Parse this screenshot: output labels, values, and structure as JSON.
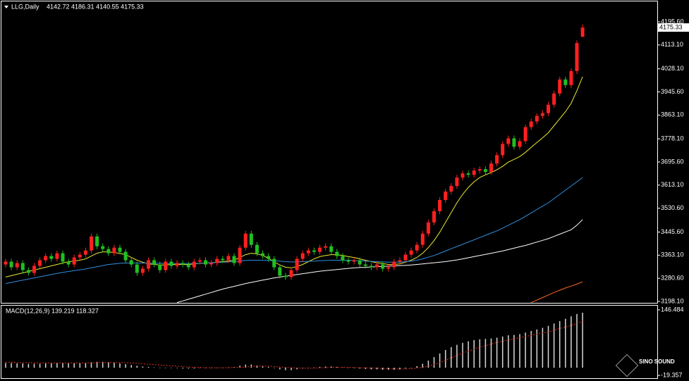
{
  "chart_data": [
    {
      "type": "candlestick",
      "title": "LLG,Daily",
      "subtitle": "4142.72 4186.31 4140.55 4175.33",
      "up_color": "#ff2020",
      "down_color": "#20c020",
      "open": [
        3330,
        3340,
        3320,
        3335,
        3310,
        3300,
        3325,
        3345,
        3360,
        3350,
        3370,
        3340,
        3330,
        3355,
        3365,
        3380,
        3430,
        3395,
        3385,
        3370,
        3390,
        3375,
        3345,
        3330,
        3300,
        3315,
        3345,
        3330,
        3310,
        3340,
        3325,
        3335,
        3330,
        3320,
        3340,
        3345,
        3330,
        3335,
        3350,
        3345,
        3360,
        3335,
        3390,
        3440,
        3400,
        3370,
        3360,
        3350,
        3320,
        3290,
        3285,
        3310,
        3350,
        3370,
        3380,
        3375,
        3390,
        3395,
        3375,
        3360,
        3345,
        3340,
        3345,
        3330,
        3325,
        3320,
        3330,
        3315,
        3320,
        3340,
        3345,
        3365,
        3380,
        3400,
        3440,
        3480,
        3520,
        3560,
        3590,
        3610,
        3640,
        3655,
        3650,
        3665,
        3670,
        3660,
        3690,
        3720,
        3760,
        3780,
        3750,
        3770,
        3820,
        3840,
        3860,
        3870,
        3900,
        3940,
        3990,
        3970,
        4020,
        4142.72
      ],
      "high": [
        3350,
        3350,
        3345,
        3345,
        3320,
        3335,
        3355,
        3370,
        3370,
        3380,
        3380,
        3350,
        3365,
        3375,
        3390,
        3440,
        3440,
        3405,
        3395,
        3400,
        3400,
        3385,
        3355,
        3340,
        3325,
        3355,
        3355,
        3340,
        3350,
        3350,
        3345,
        3345,
        3340,
        3350,
        3355,
        3355,
        3345,
        3360,
        3360,
        3370,
        3370,
        3400,
        3450,
        3450,
        3410,
        3380,
        3370,
        3360,
        3330,
        3300,
        3320,
        3360,
        3380,
        3390,
        3390,
        3400,
        3405,
        3405,
        3385,
        3370,
        3355,
        3355,
        3355,
        3340,
        3335,
        3340,
        3340,
        3330,
        3350,
        3355,
        3375,
        3390,
        3410,
        3450,
        3490,
        3530,
        3570,
        3600,
        3620,
        3650,
        3665,
        3665,
        3675,
        3680,
        3680,
        3700,
        3730,
        3770,
        3790,
        3790,
        3780,
        3830,
        3850,
        3870,
        3880,
        3910,
        3950,
        4000,
        4000,
        4030,
        4130,
        4186.31
      ],
      "low": [
        3320,
        3310,
        3310,
        3300,
        3290,
        3290,
        3315,
        3335,
        3340,
        3340,
        3330,
        3320,
        3320,
        3345,
        3355,
        3370,
        3385,
        3375,
        3360,
        3360,
        3365,
        3335,
        3320,
        3290,
        3290,
        3305,
        3320,
        3300,
        3300,
        3315,
        3315,
        3320,
        3310,
        3310,
        3330,
        3320,
        3320,
        3325,
        3335,
        3335,
        3325,
        3325,
        3380,
        3390,
        3360,
        3350,
        3340,
        3310,
        3280,
        3275,
        3275,
        3300,
        3340,
        3360,
        3365,
        3365,
        3380,
        3365,
        3350,
        3335,
        3330,
        3330,
        3320,
        3315,
        3310,
        3310,
        3305,
        3305,
        3310,
        3330,
        3335,
        3355,
        3370,
        3390,
        3430,
        3470,
        3510,
        3550,
        3580,
        3600,
        3630,
        3640,
        3640,
        3655,
        3650,
        3650,
        3680,
        3710,
        3750,
        3740,
        3740,
        3760,
        3810,
        3830,
        3850,
        3860,
        3890,
        3930,
        3960,
        3960,
        4010,
        4140.55
      ],
      "close": [
        3340,
        3320,
        3335,
        3310,
        3300,
        3325,
        3345,
        3360,
        3350,
        3370,
        3340,
        3330,
        3355,
        3365,
        3380,
        3430,
        3395,
        3385,
        3370,
        3390,
        3375,
        3345,
        3330,
        3300,
        3315,
        3345,
        3330,
        3310,
        3340,
        3325,
        3335,
        3330,
        3320,
        3340,
        3345,
        3330,
        3335,
        3350,
        3345,
        3360,
        3335,
        3390,
        3440,
        3400,
        3370,
        3360,
        3350,
        3320,
        3290,
        3285,
        3310,
        3350,
        3370,
        3380,
        3375,
        3390,
        3395,
        3375,
        3360,
        3345,
        3340,
        3345,
        3330,
        3325,
        3320,
        3330,
        3315,
        3320,
        3340,
        3345,
        3365,
        3380,
        3400,
        3440,
        3480,
        3520,
        3560,
        3590,
        3610,
        3640,
        3655,
        3650,
        3665,
        3670,
        3660,
        3690,
        3720,
        3760,
        3780,
        3750,
        3770,
        3820,
        3840,
        3860,
        3870,
        3900,
        3940,
        3990,
        3970,
        4020,
        4120,
        4175.33
      ],
      "series": [
        {
          "color": "#e8e830",
          "values": [
            3285,
            3290,
            3295,
            3300,
            3305,
            3310,
            3315,
            3320,
            3325,
            3330,
            3335,
            3340,
            3342,
            3345,
            3350,
            3360,
            3370,
            3375,
            3375,
            3372,
            3370,
            3365,
            3355,
            3345,
            3338,
            3332,
            3330,
            3328,
            3328,
            3330,
            3330,
            3330,
            3330,
            3332,
            3334,
            3335,
            3336,
            3338,
            3340,
            3342,
            3345,
            3355,
            3365,
            3370,
            3368,
            3362,
            3352,
            3340,
            3328,
            3320,
            3318,
            3322,
            3330,
            3340,
            3350,
            3358,
            3362,
            3365,
            3365,
            3362,
            3358,
            3355,
            3350,
            3345,
            3340,
            3336,
            3333,
            3330,
            3330,
            3332,
            3338,
            3345,
            3355,
            3370,
            3390,
            3415,
            3445,
            3480,
            3515,
            3550,
            3580,
            3605,
            3625,
            3640,
            3650,
            3658,
            3668,
            3680,
            3695,
            3705,
            3715,
            3730,
            3748,
            3765,
            3782,
            3800,
            3825,
            3850,
            3875,
            3905,
            3950,
            4000
          ]
        },
        {
          "color": "#2f8fe0",
          "values": [
            3262,
            3266,
            3270,
            3274,
            3278,
            3282,
            3286,
            3290,
            3294,
            3298,
            3302,
            3305,
            3308,
            3311,
            3314,
            3318,
            3322,
            3326,
            3330,
            3332,
            3334,
            3335,
            3335,
            3335,
            3335,
            3335,
            3334,
            3334,
            3333,
            3333,
            3333,
            3333,
            3333,
            3333,
            3334,
            3335,
            3336,
            3337,
            3338,
            3339,
            3340,
            3342,
            3344,
            3345,
            3345,
            3345,
            3344,
            3343,
            3342,
            3340,
            3339,
            3339,
            3340,
            3341,
            3342,
            3343,
            3344,
            3345,
            3345,
            3345,
            3345,
            3344,
            3343,
            3342,
            3341,
            3340,
            3339,
            3338,
            3338,
            3338,
            3340,
            3342,
            3345,
            3350,
            3356,
            3362,
            3370,
            3378,
            3386,
            3394,
            3402,
            3410,
            3418,
            3426,
            3434,
            3442,
            3450,
            3460,
            3470,
            3480,
            3490,
            3502,
            3514,
            3526,
            3538,
            3550,
            3565,
            3580,
            3595,
            3610,
            3625,
            3640
          ]
        },
        {
          "color": "#ffffff",
          "values": [
            null,
            null,
            null,
            null,
            null,
            null,
            null,
            null,
            null,
            null,
            null,
            null,
            null,
            null,
            null,
            null,
            null,
            null,
            null,
            null,
            null,
            null,
            null,
            null,
            null,
            null,
            null,
            null,
            null,
            null,
            3194,
            3200,
            3206,
            3212,
            3218,
            3224,
            3230,
            3236,
            3242,
            3247,
            3252,
            3257,
            3262,
            3266,
            3270,
            3274,
            3278,
            3282,
            3285,
            3288,
            3291,
            3294,
            3297,
            3300,
            3303,
            3306,
            3308,
            3310,
            3312,
            3314,
            3316,
            3318,
            3319,
            3320,
            3321,
            3322,
            3323,
            3324,
            3325,
            3326,
            3327,
            3328,
            3330,
            3332,
            3334,
            3336,
            3338,
            3340,
            3343,
            3346,
            3350,
            3354,
            3358,
            3362,
            3366,
            3370,
            3374,
            3378,
            3383,
            3388,
            3393,
            3398,
            3404,
            3410,
            3416,
            3422,
            3430,
            3438,
            3446,
            3454,
            3470,
            3490
          ]
        },
        {
          "color": "#ff6a20",
          "values": [
            null,
            null,
            null,
            null,
            null,
            null,
            null,
            null,
            null,
            null,
            null,
            null,
            null,
            null,
            null,
            null,
            null,
            null,
            null,
            null,
            null,
            null,
            null,
            null,
            null,
            null,
            null,
            null,
            null,
            null,
            null,
            null,
            null,
            null,
            null,
            null,
            null,
            null,
            null,
            null,
            null,
            null,
            null,
            null,
            null,
            null,
            null,
            null,
            null,
            null,
            null,
            null,
            null,
            null,
            null,
            null,
            null,
            null,
            null,
            null,
            null,
            null,
            null,
            null,
            null,
            null,
            null,
            null,
            null,
            null,
            null,
            null,
            null,
            null,
            null,
            null,
            null,
            null,
            null,
            null,
            null,
            null,
            null,
            null,
            null,
            null,
            null,
            null,
            null,
            null,
            null,
            null,
            3194,
            3203,
            3212,
            3221,
            3230,
            3238,
            3246,
            3253,
            3260,
            3268
          ]
        }
      ],
      "last_price": 4175.33,
      "ylim": [
        3193.1,
        4268.5
      ],
      "yticks": [
        {
          "value": 4195.6,
          "label": "4195.60"
        },
        {
          "value": 4113.1,
          "label": "4113.10"
        },
        {
          "value": 4028.1,
          "label": "4028.10"
        },
        {
          "value": 3945.6,
          "label": "3945.60"
        },
        {
          "value": 3863.1,
          "label": "3863.10"
        },
        {
          "value": 3778.1,
          "label": "3778.10"
        },
        {
          "value": 3695.6,
          "label": "3695.60"
        },
        {
          "value": 3613.1,
          "label": "3613.10"
        },
        {
          "value": 3530.6,
          "label": "3530.60"
        },
        {
          "value": 3445.6,
          "label": "3445.60"
        },
        {
          "value": 3363.1,
          "label": "3363.10"
        },
        {
          "value": 3280.6,
          "label": "3280.60"
        },
        {
          "value": 3198.1,
          "label": "3198.10"
        }
      ]
    },
    {
      "type": "macd",
      "title": "MACD(12,26,9) 139.219 118.327",
      "series": [
        {
          "type": "bar",
          "color": "#d8d8d8",
          "values": [
            12,
            12,
            11,
            11,
            10,
            10,
            10,
            11,
            11,
            12,
            12,
            11,
            11,
            11,
            12,
            14,
            15,
            15,
            14,
            13,
            11,
            9,
            7,
            5,
            3,
            2,
            1,
            0,
            -1,
            -1,
            -1,
            -2,
            -2,
            -2,
            -1,
            -1,
            -1,
            0,
            0,
            1,
            2,
            5,
            8,
            8,
            6,
            4,
            2,
            -1,
            -4,
            -6,
            -6,
            -4,
            -2,
            0,
            1,
            2,
            3,
            3,
            2,
            1,
            0,
            -1,
            -2,
            -3,
            -4,
            -4,
            -5,
            -5,
            -5,
            -4,
            -2,
            0,
            4,
            10,
            18,
            27,
            36,
            45,
            52,
            58,
            63,
            67,
            70,
            72,
            73,
            74,
            76,
            79,
            82,
            83,
            85,
            89,
            93,
            97,
            101,
            106,
            112,
            118,
            124,
            130,
            136,
            139.219
          ]
        },
        {
          "type": "line",
          "color": "#e03020",
          "values": [
            14,
            14,
            13,
            13,
            13,
            12,
            12,
            12,
            12,
            12,
            12,
            12,
            12,
            12,
            12,
            12,
            13,
            13,
            13,
            13,
            13,
            13,
            12,
            11,
            10,
            9,
            8,
            7,
            6,
            5,
            4,
            3,
            2,
            1,
            1,
            0,
            0,
            0,
            0,
            0,
            1,
            1,
            2,
            3,
            4,
            4,
            4,
            3,
            2,
            1,
            0,
            -1,
            -1,
            -1,
            -1,
            0,
            0,
            1,
            1,
            1,
            1,
            1,
            0,
            0,
            -1,
            -1,
            -2,
            -2,
            -3,
            -3,
            -3,
            -2,
            -1,
            1,
            4,
            8,
            13,
            19,
            25,
            31,
            37,
            42,
            47,
            52,
            56,
            60,
            64,
            67,
            70,
            73,
            76,
            79,
            82,
            85,
            88,
            91,
            95,
            99,
            103,
            107,
            112,
            118.327
          ]
        }
      ],
      "ylim": [
        -26.4,
        157.1
      ],
      "yticks": [
        146.484,
        -19.357
      ]
    }
  ],
  "watermark": "SINO SOUND"
}
